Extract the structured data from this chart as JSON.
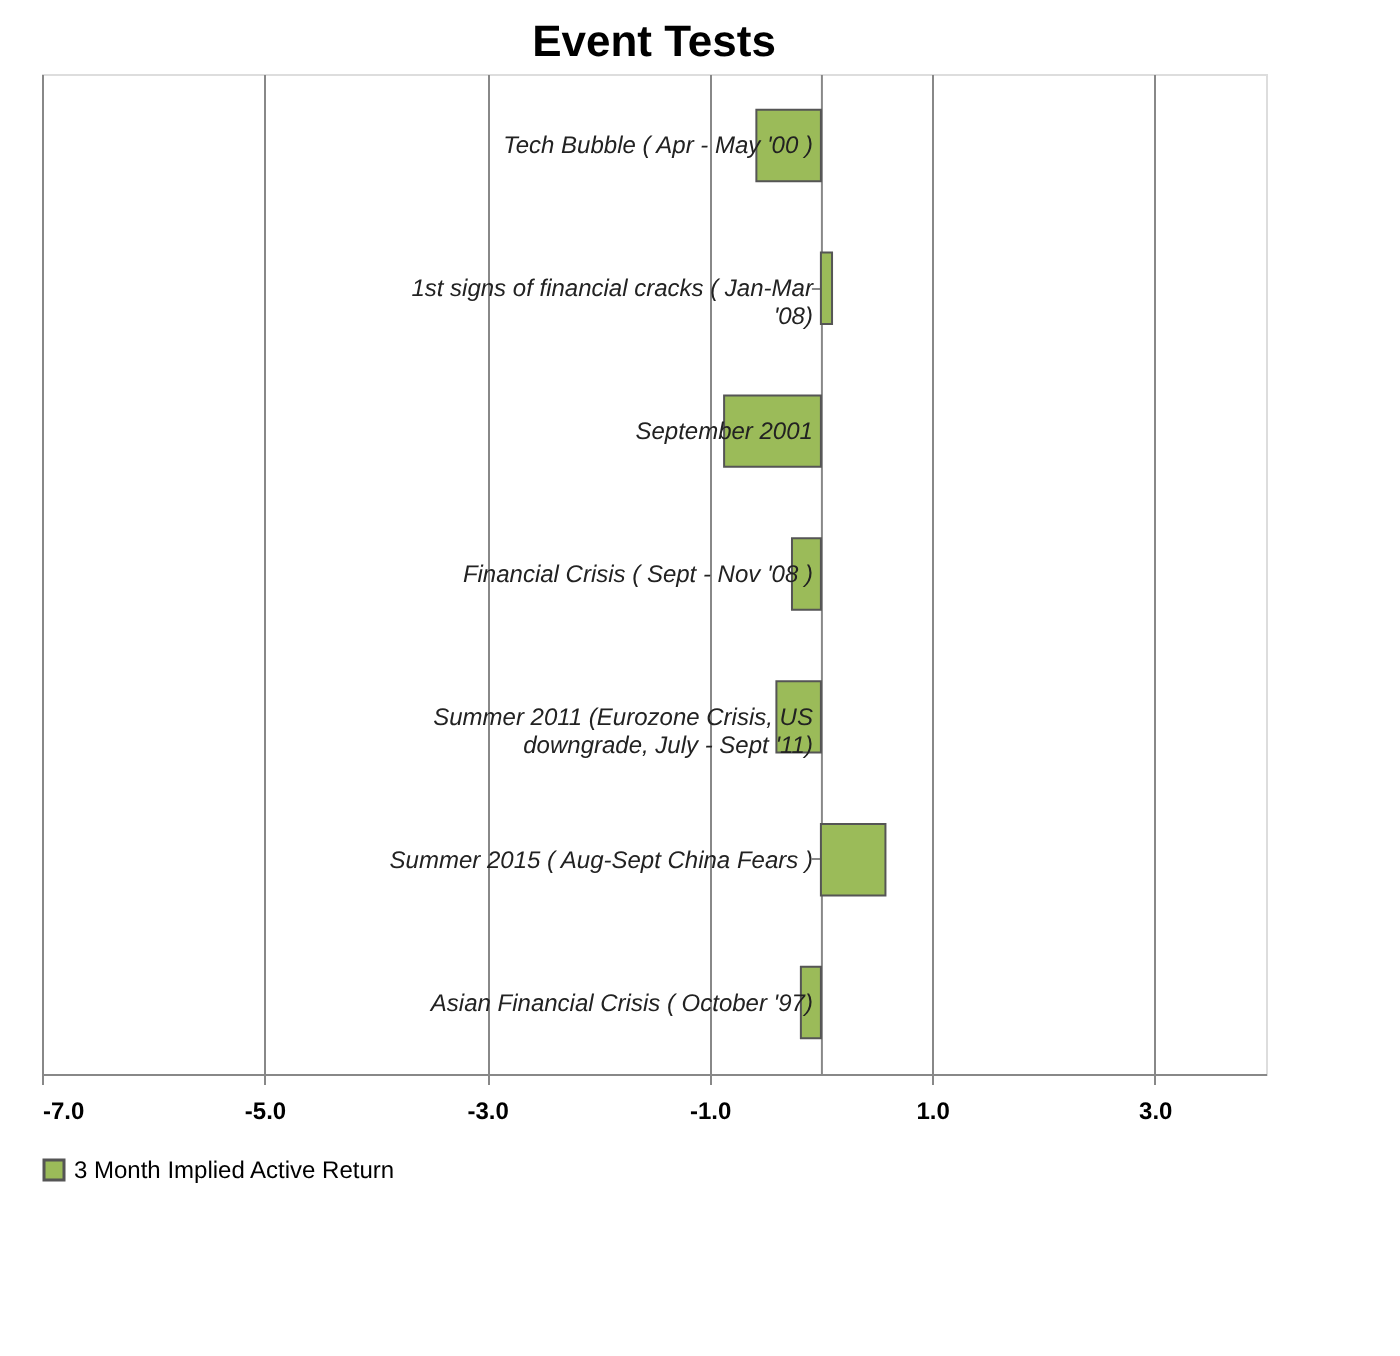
{
  "chart_data": {
    "type": "bar",
    "orientation": "horizontal",
    "title": "Event Tests",
    "categories": [
      "Tech Bubble ( Apr - May '00 )",
      "1st signs of financial cracks ( Jan-Mar '08)",
      "September 2001",
      "Financial Crisis ( Sept - Nov '08 )",
      "Summer 2011 (Eurozone Crisis, US downgrade, July - Sept '11)",
      "Summer 2015 ( Aug-Sept China Fears )",
      "Asian Financial Crisis ( October '97)"
    ],
    "series": [
      {
        "name": "3 Month Implied Active Return",
        "color": "#9bbb59",
        "values": [
          -0.58,
          0.1,
          -0.87,
          -0.26,
          -0.4,
          0.58,
          -0.18
        ]
      }
    ],
    "xlim": [
      -7,
      4
    ],
    "xticks": [
      {
        "value": -7,
        "label": "-7.0"
      },
      {
        "value": -5,
        "label": "-5.0"
      },
      {
        "value": -3,
        "label": "-3.0"
      },
      {
        "value": -1,
        "label": "-1.0"
      },
      {
        "value": 1,
        "label": "1.0"
      },
      {
        "value": 3,
        "label": "3.0"
      }
    ],
    "grid": "x",
    "legend": "bottom"
  }
}
